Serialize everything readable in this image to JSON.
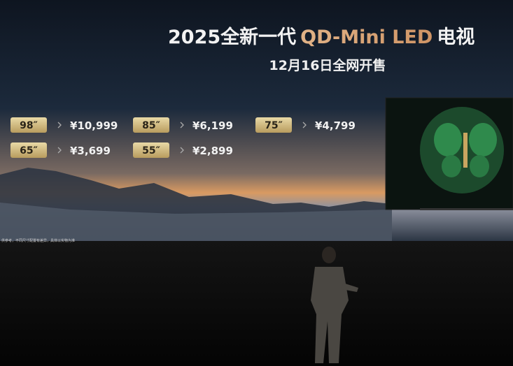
{
  "slide": {
    "title": {
      "prefix": "2025全新一代",
      "highlight": "QD-Mini LED",
      "suffix": "电视"
    },
    "subtitle": "12月16日全网开售",
    "prices": [
      {
        "size": "98″",
        "price": "¥10,999"
      },
      {
        "size": "85″",
        "price": "¥6,199"
      },
      {
        "size": "75″",
        "price": "¥4,799"
      },
      {
        "size": "65″",
        "price": "¥3,699"
      },
      {
        "size": "55″",
        "price": "¥2,899"
      }
    ],
    "footnote": "供参考，不同尺寸配置有差异，具体以实物为准"
  }
}
